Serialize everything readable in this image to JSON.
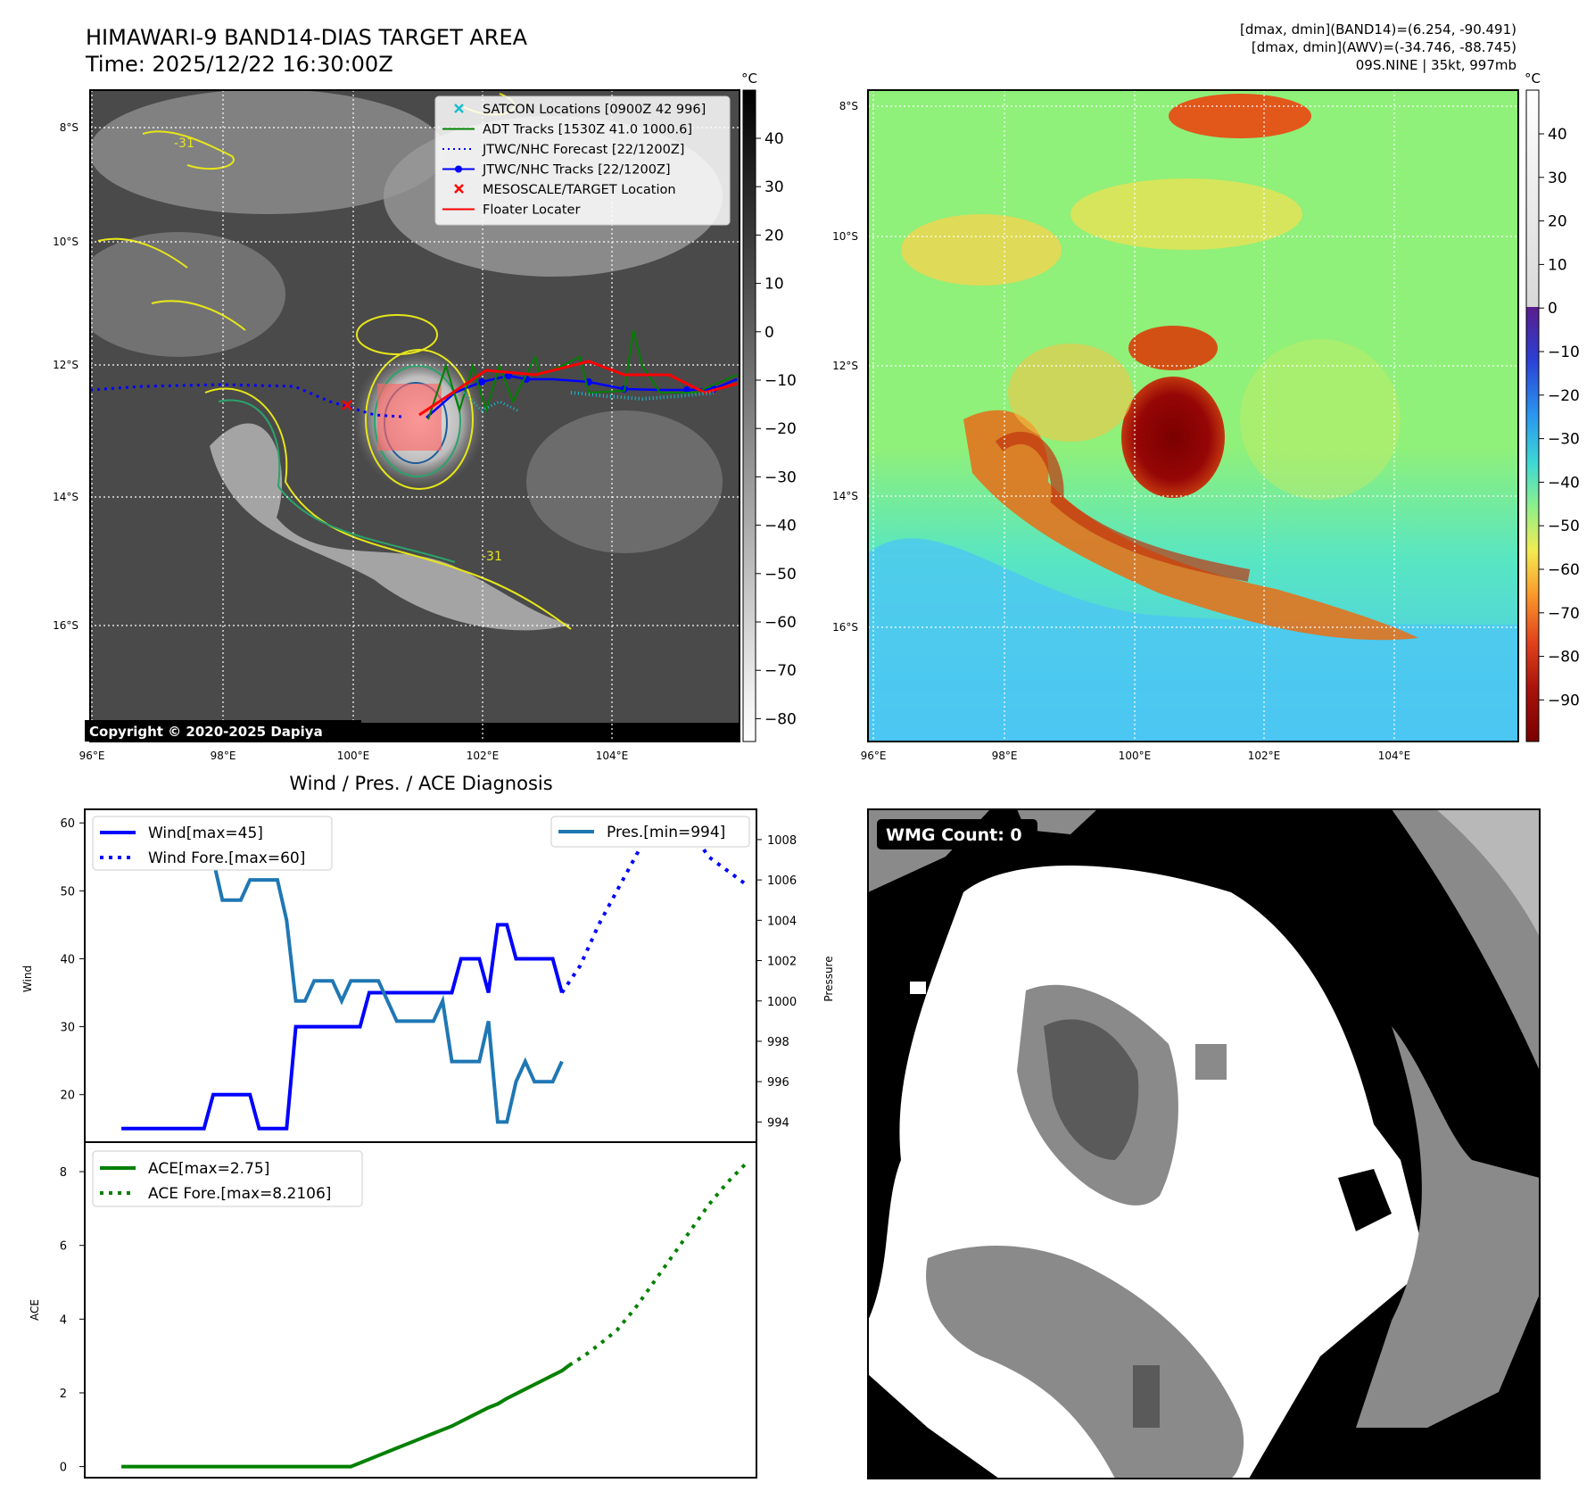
{
  "header": {
    "title_line1": "HIMAWARI-9 BAND14-DIAS TARGET AREA",
    "title_line2": "Time: 2025/12/22 16:30:00Z",
    "info_line1": "[dmax, dmin](BAND14)=(6.254, -90.491)",
    "info_line2": "[dmax, dmin](AWV)=(-34.746, -88.745)",
    "info_line3": "09S.NINE | 35kt, 997mb"
  },
  "ir_panel": {
    "unit": "°C",
    "lat_labels": [
      "8°S",
      "10°S",
      "12°S",
      "14°S",
      "16°S"
    ],
    "lon_labels": [
      "96°E",
      "98°E",
      "100°E",
      "102°E",
      "104°E"
    ],
    "colorbar_ticks": [
      "40",
      "30",
      "20",
      "10",
      "0",
      "−10",
      "−20",
      "−30",
      "−40",
      "−50",
      "−60",
      "−70",
      "−80"
    ],
    "copyright": "Copyright © 2020-2025 Dapiya",
    "contour_label": "-31",
    "legend": [
      {
        "label": "SATCON Locations [0900Z 42 996]",
        "color": "#17becf",
        "marker": "x"
      },
      {
        "label": "ADT Tracks [1530Z 41.0 1000.6]",
        "color": "#008000",
        "marker": "line"
      },
      {
        "label": "JTWC/NHC Forecast [22/1200Z]",
        "color": "#0000ff",
        "marker": "dotted"
      },
      {
        "label": "JTWC/NHC Tracks [22/1200Z]",
        "color": "#0000ff",
        "marker": "line-dot"
      },
      {
        "label": "MESOSCALE/TARGET Location",
        "color": "#ff0000",
        "marker": "x"
      },
      {
        "label": "Floater Locater",
        "color": "#ff0000",
        "marker": "line"
      }
    ]
  },
  "awv_panel": {
    "unit": "°C",
    "lat_labels": [
      "8°S",
      "10°S",
      "12°S",
      "14°S",
      "16°S"
    ],
    "lon_labels": [
      "96°E",
      "98°E",
      "100°E",
      "102°E",
      "104°E"
    ],
    "colorbar_ticks": [
      "40",
      "30",
      "20",
      "10",
      "0",
      "−10",
      "−20",
      "−30",
      "−40",
      "−50",
      "−60",
      "−70",
      "−80",
      "−90"
    ]
  },
  "wmg_panel": {
    "label": "WMG Count: 0"
  },
  "chart_data": [
    {
      "type": "line",
      "title": "Wind / Pres. / ACE Diagnosis",
      "ylabel": "Wind",
      "ylabel_right": "Pressure",
      "ylim": [
        13,
        62
      ],
      "ylim_right": [
        993,
        1009.5
      ],
      "y_ticks": [
        "20",
        "30",
        "40",
        "50",
        "60"
      ],
      "y_ticks_right": [
        "994",
        "996",
        "998",
        "1000",
        "1002",
        "1004",
        "1006",
        "1008"
      ],
      "x": [
        0,
        0.25,
        0.5,
        0.75,
        1,
        1.25,
        1.5,
        1.75,
        2,
        2.25,
        2.5,
        2.75,
        3,
        3.25,
        3.5,
        3.75,
        4,
        4.25,
        4.5,
        4.75,
        5,
        5.25,
        5.5,
        5.75,
        6,
        6.25,
        6.5,
        6.75,
        7,
        7.25,
        7.5,
        7.75,
        8,
        8.25,
        8.5,
        8.75,
        9,
        9.25,
        9.5,
        9.75,
        10,
        10.25,
        10.5,
        10.75,
        11,
        11.25,
        11.5,
        11.75,
        12,
        12.25,
        12.5,
        12.75,
        13,
        13.25,
        13.5,
        13.75,
        14,
        14.25,
        14.5,
        14.75,
        15,
        15.25,
        15.5,
        15.75,
        16,
        16.25,
        16.5,
        16.75,
        17
      ],
      "series": [
        {
          "name": "Wind[max=45]",
          "color": "#0000ff",
          "style": "solid",
          "axis": "left",
          "points": [
            [
              0,
              15
            ],
            [
              0.25,
              15
            ],
            [
              0.5,
              15
            ],
            [
              0.75,
              15
            ],
            [
              1,
              15
            ],
            [
              1.25,
              15
            ],
            [
              1.5,
              15
            ],
            [
              1.75,
              15
            ],
            [
              2,
              15
            ],
            [
              2.25,
              15
            ],
            [
              2.5,
              20
            ],
            [
              2.75,
              20
            ],
            [
              3,
              20
            ],
            [
              3.25,
              20
            ],
            [
              3.5,
              20
            ],
            [
              3.75,
              15
            ],
            [
              4,
              15
            ],
            [
              4.25,
              15
            ],
            [
              4.5,
              15
            ],
            [
              4.75,
              30
            ],
            [
              5,
              30
            ],
            [
              5.25,
              30
            ],
            [
              5.5,
              30
            ],
            [
              5.75,
              30
            ],
            [
              6,
              30
            ],
            [
              6.25,
              30
            ],
            [
              6.5,
              30
            ],
            [
              6.75,
              35
            ],
            [
              7,
              35
            ],
            [
              7.25,
              35
            ],
            [
              7.5,
              35
            ],
            [
              7.75,
              35
            ],
            [
              8,
              35
            ],
            [
              8.25,
              35
            ],
            [
              8.5,
              35
            ],
            [
              8.75,
              35
            ],
            [
              9,
              35
            ],
            [
              9.25,
              40
            ],
            [
              9.5,
              40
            ],
            [
              9.75,
              40
            ],
            [
              10,
              35
            ],
            [
              10.25,
              45
            ],
            [
              10.5,
              45
            ],
            [
              10.75,
              40
            ],
            [
              11,
              40
            ],
            [
              11.25,
              40
            ],
            [
              11.5,
              40
            ],
            [
              11.75,
              40
            ],
            [
              12,
              35
            ]
          ]
        },
        {
          "name": "Wind Fore.[max=60]",
          "color": "#0000ff",
          "style": "dotted",
          "axis": "left",
          "points": [
            [
              12,
              35
            ],
            [
              12.5,
              39
            ],
            [
              13,
              45
            ],
            [
              13.5,
              50
            ],
            [
              14,
              55
            ],
            [
              14.5,
              60
            ],
            [
              15,
              60
            ],
            [
              15.5,
              59
            ],
            [
              16,
              55
            ],
            [
              16.5,
              53
            ],
            [
              17,
              51
            ]
          ]
        },
        {
          "name": "Pres.[min=994]",
          "color": "#1f77b4",
          "style": "solid",
          "axis": "right",
          "points": [
            [
              0,
              1009
            ],
            [
              0.25,
              1009
            ],
            [
              0.5,
              1009
            ],
            [
              0.75,
              1007
            ],
            [
              1,
              1007
            ],
            [
              1.25,
              1007
            ],
            [
              1.5,
              1007
            ],
            [
              1.75,
              1007
            ],
            [
              2,
              1007
            ],
            [
              2.25,
              1007
            ],
            [
              2.5,
              1007
            ],
            [
              2.75,
              1005
            ],
            [
              3,
              1005
            ],
            [
              3.25,
              1005
            ],
            [
              3.5,
              1006
            ],
            [
              3.75,
              1006
            ],
            [
              4,
              1006
            ],
            [
              4.25,
              1006
            ],
            [
              4.5,
              1004
            ],
            [
              4.75,
              1000
            ],
            [
              5,
              1000
            ],
            [
              5.25,
              1001
            ],
            [
              5.5,
              1001
            ],
            [
              5.75,
              1001
            ],
            [
              6,
              1000
            ],
            [
              6.25,
              1001
            ],
            [
              6.5,
              1001
            ],
            [
              6.75,
              1001
            ],
            [
              7,
              1001
            ],
            [
              7.25,
              1000
            ],
            [
              7.5,
              999
            ],
            [
              7.75,
              999
            ],
            [
              8,
              999
            ],
            [
              8.25,
              999
            ],
            [
              8.5,
              999
            ],
            [
              8.75,
              1000
            ],
            [
              9,
              997
            ],
            [
              9.25,
              997
            ],
            [
              9.5,
              997
            ],
            [
              9.75,
              997
            ],
            [
              10,
              999
            ],
            [
              10.25,
              994
            ],
            [
              10.5,
              994
            ],
            [
              10.75,
              996
            ],
            [
              11,
              997
            ],
            [
              11.25,
              996
            ],
            [
              11.5,
              996
            ],
            [
              11.75,
              996
            ],
            [
              12,
              997
            ]
          ]
        }
      ]
    },
    {
      "type": "line",
      "ylabel": "ACE",
      "ylim": [
        -0.3,
        8.8
      ],
      "y_ticks": [
        "0",
        "2",
        "4",
        "6",
        "8"
      ],
      "series": [
        {
          "name": "ACE[max=2.75]",
          "color": "#008000",
          "style": "solid",
          "points": [
            [
              0,
              0
            ],
            [
              1,
              0
            ],
            [
              2,
              0
            ],
            [
              3,
              0
            ],
            [
              4,
              0
            ],
            [
              5,
              0
            ],
            [
              6,
              0
            ],
            [
              6.25,
              0
            ],
            [
              6.5,
              0.1
            ],
            [
              7,
              0.3
            ],
            [
              7.5,
              0.5
            ],
            [
              8,
              0.7
            ],
            [
              8.5,
              0.9
            ],
            [
              9,
              1.1
            ],
            [
              9.5,
              1.35
            ],
            [
              10,
              1.6
            ],
            [
              10.25,
              1.7
            ],
            [
              10.5,
              1.85
            ],
            [
              11,
              2.1
            ],
            [
              11.5,
              2.35
            ],
            [
              12,
              2.6
            ],
            [
              12.2,
              2.75
            ]
          ]
        },
        {
          "name": "ACE Fore.[max=8.2106]",
          "color": "#008000",
          "style": "dotted",
          "points": [
            [
              12.2,
              2.75
            ],
            [
              12.6,
              3.0
            ],
            [
              13,
              3.3
            ],
            [
              13.5,
              3.7
            ],
            [
              14,
              4.3
            ],
            [
              14.5,
              5.0
            ],
            [
              15,
              5.7
            ],
            [
              15.5,
              6.4
            ],
            [
              16,
              7.1
            ],
            [
              16.5,
              7.7
            ],
            [
              17,
              8.21
            ]
          ]
        }
      ]
    }
  ]
}
